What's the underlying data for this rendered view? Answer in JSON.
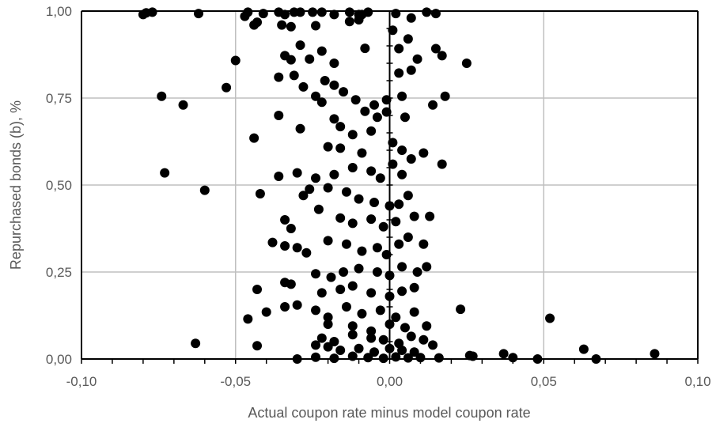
{
  "chart_data": {
    "type": "scatter",
    "title": "",
    "xlabel": "Actual coupon rate minus model coupon rate",
    "ylabel": "Repurchased bonds (b), %",
    "xlim": [
      -0.1,
      0.1
    ],
    "ylim": [
      0.0,
      1.0
    ],
    "x_ticks": [
      "-0,10",
      "-0,05",
      "0,00",
      "0,05",
      "0,10"
    ],
    "y_ticks": [
      "0,00",
      "0,25",
      "0,50",
      "0,75",
      "1,00"
    ],
    "grid": true,
    "legend": "none",
    "marker_color": "#000000",
    "grid_color": "#bfbfbf",
    "series": [
      {
        "points": [
          [
            -0.08,
            0.99
          ],
          [
            -0.079,
            0.995
          ],
          [
            -0.077,
            0.997
          ],
          [
            -0.062,
            0.993
          ],
          [
            -0.047,
            0.985
          ],
          [
            -0.046,
            0.997
          ],
          [
            -0.041,
            0.993
          ],
          [
            -0.036,
            0.997
          ],
          [
            -0.034,
            0.99
          ],
          [
            -0.031,
            0.997
          ],
          [
            -0.029,
            0.997
          ],
          [
            -0.025,
            0.997
          ],
          [
            -0.022,
            0.997
          ],
          [
            -0.018,
            0.99
          ],
          [
            -0.013,
            0.997
          ],
          [
            -0.01,
            0.99
          ],
          [
            -0.007,
            0.997
          ],
          [
            0.002,
            0.993
          ],
          [
            0.012,
            0.997
          ],
          [
            0.015,
            0.993
          ],
          [
            -0.044,
            0.96
          ],
          [
            -0.043,
            0.968
          ],
          [
            -0.035,
            0.96
          ],
          [
            -0.032,
            0.955
          ],
          [
            -0.024,
            0.958
          ],
          [
            -0.013,
            0.97
          ],
          [
            -0.01,
            0.975
          ],
          [
            0.001,
            0.945
          ],
          [
            0.007,
            0.98
          ],
          [
            -0.009,
            0.99
          ],
          [
            -0.05,
            0.858
          ],
          [
            -0.034,
            0.872
          ],
          [
            -0.032,
            0.86
          ],
          [
            -0.029,
            0.902
          ],
          [
            -0.026,
            0.862
          ],
          [
            -0.022,
            0.885
          ],
          [
            -0.018,
            0.85
          ],
          [
            -0.008,
            0.893
          ],
          [
            0.003,
            0.892
          ],
          [
            0.006,
            0.92
          ],
          [
            0.009,
            0.862
          ],
          [
            0.015,
            0.892
          ],
          [
            0.017,
            0.872
          ],
          [
            0.025,
            0.85
          ],
          [
            -0.053,
            0.78
          ],
          [
            -0.036,
            0.81
          ],
          [
            -0.031,
            0.815
          ],
          [
            -0.021,
            0.8
          ],
          [
            -0.018,
            0.787
          ],
          [
            -0.015,
            0.768
          ],
          [
            -0.028,
            0.782
          ],
          [
            0.003,
            0.822
          ],
          [
            0.007,
            0.83
          ],
          [
            -0.074,
            0.755
          ],
          [
            -0.067,
            0.73
          ],
          [
            -0.024,
            0.755
          ],
          [
            -0.022,
            0.738
          ],
          [
            -0.011,
            0.745
          ],
          [
            -0.005,
            0.73
          ],
          [
            -0.001,
            0.745
          ],
          [
            0.004,
            0.755
          ],
          [
            0.014,
            0.73
          ],
          [
            0.018,
            0.755
          ],
          [
            -0.036,
            0.7
          ],
          [
            -0.018,
            0.69
          ],
          [
            -0.008,
            0.712
          ],
          [
            -0.004,
            0.695
          ],
          [
            -0.001,
            0.71
          ],
          [
            0.005,
            0.695
          ],
          [
            -0.029,
            0.662
          ],
          [
            -0.016,
            0.668
          ],
          [
            -0.012,
            0.645
          ],
          [
            -0.006,
            0.655
          ],
          [
            0.001,
            0.622
          ],
          [
            -0.044,
            0.635
          ],
          [
            -0.02,
            0.61
          ],
          [
            -0.016,
            0.606
          ],
          [
            -0.009,
            0.592
          ],
          [
            0.004,
            0.6
          ],
          [
            0.007,
            0.575
          ],
          [
            0.011,
            0.592
          ],
          [
            0.017,
            0.56
          ],
          [
            -0.073,
            0.535
          ],
          [
            -0.036,
            0.525
          ],
          [
            -0.03,
            0.535
          ],
          [
            -0.024,
            0.52
          ],
          [
            -0.018,
            0.53
          ],
          [
            -0.012,
            0.55
          ],
          [
            -0.006,
            0.54
          ],
          [
            -0.003,
            0.52
          ],
          [
            0.001,
            0.56
          ],
          [
            0.004,
            0.53
          ],
          [
            -0.06,
            0.485
          ],
          [
            -0.042,
            0.475
          ],
          [
            -0.028,
            0.47
          ],
          [
            -0.026,
            0.488
          ],
          [
            -0.02,
            0.492
          ],
          [
            -0.014,
            0.48
          ],
          [
            -0.01,
            0.46
          ],
          [
            -0.005,
            0.45
          ],
          [
            0.0,
            0.44
          ],
          [
            0.003,
            0.445
          ],
          [
            0.006,
            0.47
          ],
          [
            -0.034,
            0.4
          ],
          [
            -0.032,
            0.375
          ],
          [
            -0.023,
            0.43
          ],
          [
            -0.016,
            0.405
          ],
          [
            -0.012,
            0.39
          ],
          [
            -0.006,
            0.402
          ],
          [
            -0.002,
            0.38
          ],
          [
            0.002,
            0.395
          ],
          [
            0.008,
            0.41
          ],
          [
            0.013,
            0.41
          ],
          [
            -0.038,
            0.335
          ],
          [
            -0.034,
            0.325
          ],
          [
            -0.03,
            0.32
          ],
          [
            -0.027,
            0.305
          ],
          [
            -0.02,
            0.34
          ],
          [
            -0.014,
            0.33
          ],
          [
            -0.009,
            0.31
          ],
          [
            -0.004,
            0.32
          ],
          [
            -0.001,
            0.3
          ],
          [
            0.003,
            0.33
          ],
          [
            0.006,
            0.35
          ],
          [
            0.011,
            0.33
          ],
          [
            -0.024,
            0.245
          ],
          [
            -0.019,
            0.235
          ],
          [
            -0.015,
            0.25
          ],
          [
            -0.01,
            0.26
          ],
          [
            -0.004,
            0.25
          ],
          [
            0.0,
            0.24
          ],
          [
            0.004,
            0.265
          ],
          [
            0.009,
            0.25
          ],
          [
            0.012,
            0.265
          ],
          [
            -0.043,
            0.2
          ],
          [
            -0.034,
            0.22
          ],
          [
            -0.032,
            0.215
          ],
          [
            -0.022,
            0.19
          ],
          [
            -0.016,
            0.2
          ],
          [
            -0.012,
            0.21
          ],
          [
            -0.006,
            0.19
          ],
          [
            0.0,
            0.18
          ],
          [
            0.004,
            0.195
          ],
          [
            0.008,
            0.205
          ],
          [
            -0.04,
            0.135
          ],
          [
            -0.034,
            0.15
          ],
          [
            -0.03,
            0.155
          ],
          [
            -0.024,
            0.14
          ],
          [
            -0.02,
            0.12
          ],
          [
            -0.014,
            0.15
          ],
          [
            -0.009,
            0.13
          ],
          [
            -0.003,
            0.14
          ],
          [
            0.002,
            0.12
          ],
          [
            0.008,
            0.135
          ],
          [
            0.023,
            0.143
          ],
          [
            -0.046,
            0.115
          ],
          [
            -0.02,
            0.1
          ],
          [
            -0.012,
            0.095
          ],
          [
            -0.006,
            0.08
          ],
          [
            0.0,
            0.1
          ],
          [
            0.005,
            0.09
          ],
          [
            0.012,
            0.095
          ],
          [
            0.052,
            0.117
          ],
          [
            -0.022,
            0.06
          ],
          [
            -0.018,
            0.05
          ],
          [
            -0.012,
            0.07
          ],
          [
            -0.006,
            0.06
          ],
          [
            -0.002,
            0.055
          ],
          [
            0.003,
            0.045
          ],
          [
            0.007,
            0.065
          ],
          [
            0.011,
            0.055
          ],
          [
            -0.063,
            0.045
          ],
          [
            -0.043,
            0.038
          ],
          [
            -0.024,
            0.04
          ],
          [
            -0.02,
            0.035
          ],
          [
            -0.016,
            0.025
          ],
          [
            -0.01,
            0.03
          ],
          [
            -0.005,
            0.02
          ],
          [
            0.0,
            0.03
          ],
          [
            0.004,
            0.025
          ],
          [
            0.008,
            0.02
          ],
          [
            0.014,
            0.04
          ],
          [
            0.037,
            0.015
          ],
          [
            0.063,
            0.028
          ],
          [
            0.086,
            0.015
          ],
          [
            -0.03,
            0.0
          ],
          [
            -0.024,
            0.005
          ],
          [
            -0.018,
            0.002
          ],
          [
            -0.012,
            0.008
          ],
          [
            -0.007,
            0.004
          ],
          [
            -0.002,
            0.002
          ],
          [
            0.002,
            0.006
          ],
          [
            0.006,
            0.003
          ],
          [
            0.01,
            0.004
          ],
          [
            0.016,
            0.003
          ],
          [
            0.027,
            0.008
          ],
          [
            0.04,
            0.004
          ],
          [
            0.048,
            0.0
          ],
          [
            0.067,
            0.0
          ],
          [
            0.026,
            0.01
          ]
        ]
      }
    ]
  }
}
